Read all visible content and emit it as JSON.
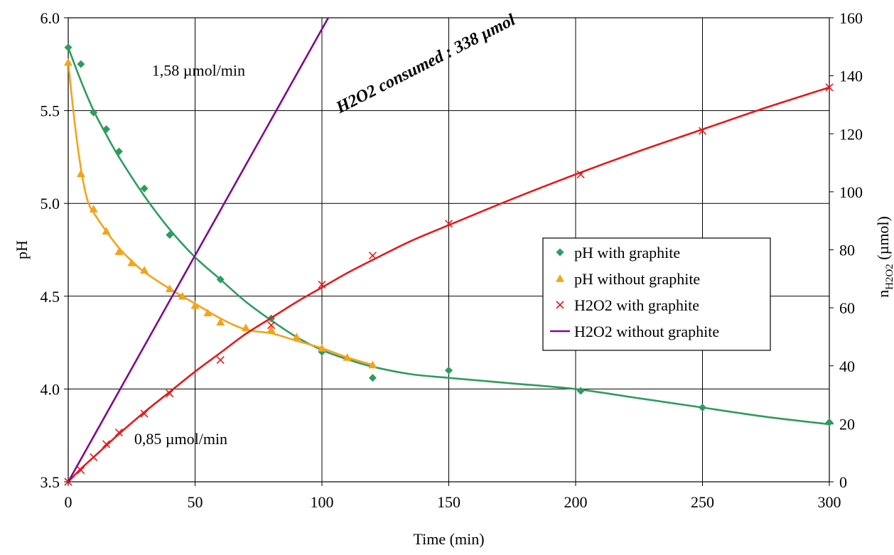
{
  "chart_data": {
    "type": "scatter",
    "xlabel": "Time (min)",
    "ylabel_left": "pH",
    "ylabel_right_main": "n",
    "ylabel_right_sub": "H2O2",
    "ylabel_right_tail": " (µmol)",
    "xlim": [
      0,
      300
    ],
    "ylim_left": [
      3.5,
      6.0
    ],
    "ylim_right": [
      0,
      160
    ],
    "x_ticks": [
      0,
      50,
      100,
      150,
      200,
      250,
      300
    ],
    "y_left_ticks": [
      "3.5",
      "4.0",
      "4.5",
      "5.0",
      "5.5",
      "6.0"
    ],
    "y_right_ticks": [
      0,
      20,
      40,
      60,
      80,
      100,
      120,
      140,
      160
    ],
    "grid": true,
    "legend_position": "center-right",
    "series": [
      {
        "name": "pH with graphite",
        "axis": "left",
        "marker": "diamond",
        "color": "#2e9c5f",
        "points": [
          [
            0,
            5.84
          ],
          [
            5,
            5.75
          ],
          [
            10,
            5.49
          ],
          [
            15,
            5.4
          ],
          [
            20,
            5.28
          ],
          [
            30,
            5.08
          ],
          [
            40,
            4.83
          ],
          [
            60,
            4.59
          ],
          [
            80,
            4.38
          ],
          [
            100,
            4.2
          ],
          [
            120,
            4.06
          ],
          [
            150,
            4.1
          ],
          [
            202,
            3.99
          ],
          [
            250,
            3.9
          ],
          [
            300,
            3.82
          ]
        ],
        "fit": [
          [
            0,
            5.84
          ],
          [
            5,
            5.66
          ],
          [
            10,
            5.5
          ],
          [
            15,
            5.37
          ],
          [
            20,
            5.25
          ],
          [
            30,
            5.04
          ],
          [
            40,
            4.86
          ],
          [
            50,
            4.71
          ],
          [
            60,
            4.59
          ],
          [
            70,
            4.47
          ],
          [
            80,
            4.37
          ],
          [
            90,
            4.28
          ],
          [
            100,
            4.21
          ],
          [
            110,
            4.16
          ],
          [
            120,
            4.12
          ],
          [
            135,
            4.08
          ],
          [
            150,
            4.06
          ],
          [
            175,
            4.03
          ],
          [
            200,
            4.0
          ],
          [
            225,
            3.95
          ],
          [
            250,
            3.9
          ],
          [
            275,
            3.85
          ],
          [
            300,
            3.81
          ]
        ]
      },
      {
        "name": "pH without graphite",
        "axis": "left",
        "marker": "triangle",
        "color": "#f5a31a",
        "points": [
          [
            0,
            5.76
          ],
          [
            5,
            5.16
          ],
          [
            10,
            4.97
          ],
          [
            15,
            4.85
          ],
          [
            20,
            4.74
          ],
          [
            25,
            4.68
          ],
          [
            30,
            4.64
          ],
          [
            40,
            4.54
          ],
          [
            45,
            4.5
          ],
          [
            50,
            4.45
          ],
          [
            55,
            4.41
          ],
          [
            60,
            4.36
          ],
          [
            70,
            4.33
          ],
          [
            80,
            4.32
          ],
          [
            90,
            4.28
          ],
          [
            100,
            4.22
          ],
          [
            110,
            4.17
          ],
          [
            120,
            4.13
          ]
        ],
        "fit": [
          [
            0,
            5.76
          ],
          [
            2,
            5.5
          ],
          [
            4,
            5.28
          ],
          [
            6,
            5.11
          ],
          [
            8,
            5.0
          ],
          [
            10,
            4.95
          ],
          [
            15,
            4.85
          ],
          [
            20,
            4.76
          ],
          [
            25,
            4.69
          ],
          [
            30,
            4.63
          ],
          [
            40,
            4.54
          ],
          [
            50,
            4.46
          ],
          [
            60,
            4.38
          ],
          [
            70,
            4.32
          ],
          [
            80,
            4.3
          ],
          [
            90,
            4.26
          ],
          [
            100,
            4.22
          ],
          [
            110,
            4.17
          ],
          [
            120,
            4.13
          ]
        ]
      },
      {
        "name": "H2O2 with graphite",
        "axis": "right",
        "marker": "x",
        "color": "#e8191b",
        "points": [
          [
            0,
            0
          ],
          [
            5,
            4
          ],
          [
            10,
            8.5
          ],
          [
            15,
            13
          ],
          [
            20,
            17
          ],
          [
            30,
            23.5
          ],
          [
            40,
            30.5
          ],
          [
            60,
            42
          ],
          [
            80,
            54
          ],
          [
            100,
            68
          ],
          [
            120,
            78
          ],
          [
            150,
            89
          ],
          [
            202,
            106
          ],
          [
            250,
            121
          ],
          [
            300,
            136
          ]
        ],
        "fit": [
          [
            0,
            0
          ],
          [
            5,
            4.5
          ],
          [
            10,
            8.5
          ],
          [
            15,
            12.5
          ],
          [
            20,
            16.5
          ],
          [
            30,
            24
          ],
          [
            40,
            31
          ],
          [
            50,
            38
          ],
          [
            60,
            44.5
          ],
          [
            70,
            51
          ],
          [
            80,
            56.5
          ],
          [
            90,
            62
          ],
          [
            100,
            67
          ],
          [
            110,
            72
          ],
          [
            120,
            76.5
          ],
          [
            135,
            83
          ],
          [
            150,
            88.5
          ],
          [
            175,
            97.5
          ],
          [
            200,
            106
          ],
          [
            225,
            114
          ],
          [
            250,
            121.5
          ],
          [
            275,
            129
          ],
          [
            300,
            136
          ]
        ]
      },
      {
        "name": "H2O2 without graphite",
        "axis": "right",
        "marker": "line",
        "color": "#800a8c",
        "fit": [
          [
            0,
            0
          ],
          [
            102.5,
            160
          ]
        ]
      }
    ],
    "annotations": [
      {
        "text": "1,58 µmol/min",
        "x": 33,
        "y_right": 140,
        "style": "normal"
      },
      {
        "text": "0,85 µmol/min",
        "x": 26,
        "y_right": 13,
        "style": "normal"
      },
      {
        "text": "H2O2 consumed : 338 µmol",
        "x": 107,
        "y_right": 127,
        "style": "bold-italic",
        "rotate": -27
      }
    ]
  }
}
